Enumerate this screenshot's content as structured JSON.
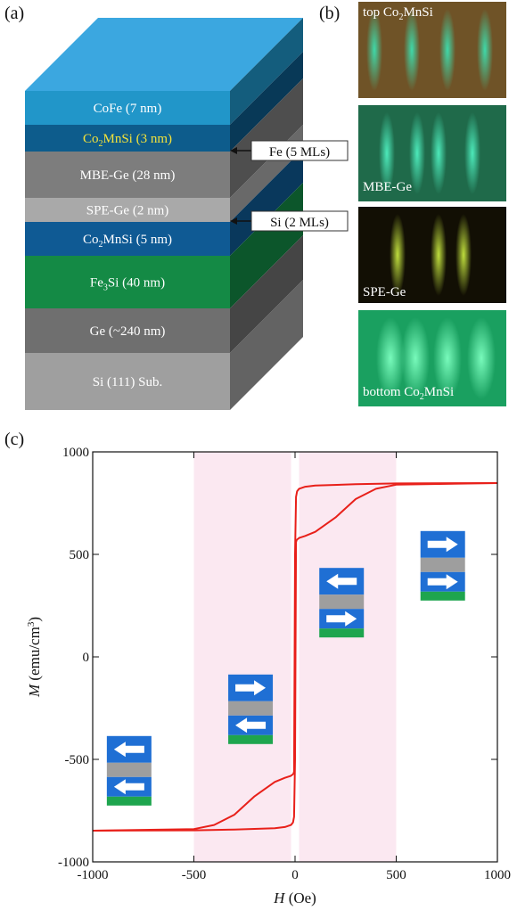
{
  "panels": {
    "a": "(a)",
    "b": "(b)",
    "c": "(c)"
  },
  "layers": [
    {
      "label": "CoFe (7 nm)",
      "color": "#2196c9"
    },
    {
      "label": "Co2MnSi (3 nm)",
      "label_pre": "Co",
      "label_sub": "2",
      "label_post": "MnSi (3 nm)",
      "color": "#0d5c8c",
      "highlight": true
    },
    {
      "label": "MBE-Ge (28 nm)",
      "color": "#7d7d7d"
    },
    {
      "label": "SPE-Ge (2 nm)",
      "color": "#a9a9a9"
    },
    {
      "label": "Co2MnSi (5 nm)",
      "label_pre": "Co",
      "label_sub": "2",
      "label_post": "MnSi (5 nm)",
      "color": "#0f5a94"
    },
    {
      "label": "Fe3Si (40 nm)",
      "label_pre": "Fe",
      "label_sub": "3",
      "label_post": "Si (40 nm)",
      "color": "#148a45"
    },
    {
      "label": "Ge (~240 nm)",
      "color": "#6f6f6f"
    },
    {
      "label": "Si (111) Sub.",
      "color": "#9f9f9f"
    }
  ],
  "callouts": {
    "fe": "Fe (5 MLs)",
    "si": "Si (2 MLs)"
  },
  "rheed": [
    {
      "pre": "top Co",
      "sub": "2",
      "post": "MnSi",
      "bg": "#6f5327"
    },
    {
      "pre": "MBE-Ge",
      "sub": "",
      "post": "",
      "bg": "#1f6a4a"
    },
    {
      "pre": "SPE-Ge",
      "sub": "",
      "post": "",
      "bg": "#120f04"
    },
    {
      "pre": "bottom Co",
      "sub": "2",
      "post": "MnSi",
      "bg": "#1aa060"
    }
  ],
  "chart_data": {
    "type": "line",
    "x_axis": {
      "title": "H",
      "unit": "(Oe)",
      "range": [
        -1000,
        1000
      ],
      "ticks": [
        "-1000",
        "-500",
        "0",
        "500",
        "1000"
      ]
    },
    "y_axis": {
      "title": "M",
      "unit": "(emu/cm",
      "unit_sup": "3",
      "unit_end": ")",
      "range": [
        -1000,
        1000
      ],
      "ticks": [
        "-1000",
        "-500",
        "0",
        "500",
        "1000"
      ]
    },
    "shaded_regions": [
      [
        -500,
        -20
      ],
      [
        20,
        500
      ]
    ],
    "series": [
      {
        "branch": "descending",
        "color": "#e8201a",
        "x": [
          1000,
          500,
          300,
          100,
          50,
          20,
          10,
          5,
          0,
          -2,
          -5,
          -8,
          -10,
          -20,
          -50,
          -100,
          -200,
          -300,
          -400,
          -500,
          -1000
        ],
        "y": [
          848,
          846,
          842,
          836,
          830,
          820,
          808,
          780,
          500,
          0,
          -560,
          -570,
          -572,
          -580,
          -590,
          -610,
          -680,
          -770,
          -820,
          -840,
          -848
        ]
      },
      {
        "branch": "ascending",
        "color": "#e8201a",
        "x": [
          -1000,
          -500,
          -300,
          -100,
          -50,
          -20,
          -10,
          -5,
          0,
          2,
          5,
          8,
          10,
          20,
          50,
          100,
          200,
          300,
          400,
          500,
          1000
        ],
        "y": [
          -848,
          -846,
          -842,
          -836,
          -830,
          -820,
          -808,
          -780,
          -500,
          0,
          560,
          570,
          572,
          580,
          590,
          610,
          680,
          770,
          820,
          840,
          848
        ]
      }
    ],
    "state_icons": [
      {
        "x": -820,
        "y": -560,
        "top": "left",
        "bottom": "left"
      },
      {
        "x": -220,
        "y": -260,
        "top": "right",
        "bottom": "left"
      },
      {
        "x": 230,
        "y": 260,
        "top": "left",
        "bottom": "right"
      },
      {
        "x": 730,
        "y": 440,
        "top": "right",
        "bottom": "right"
      }
    ]
  }
}
